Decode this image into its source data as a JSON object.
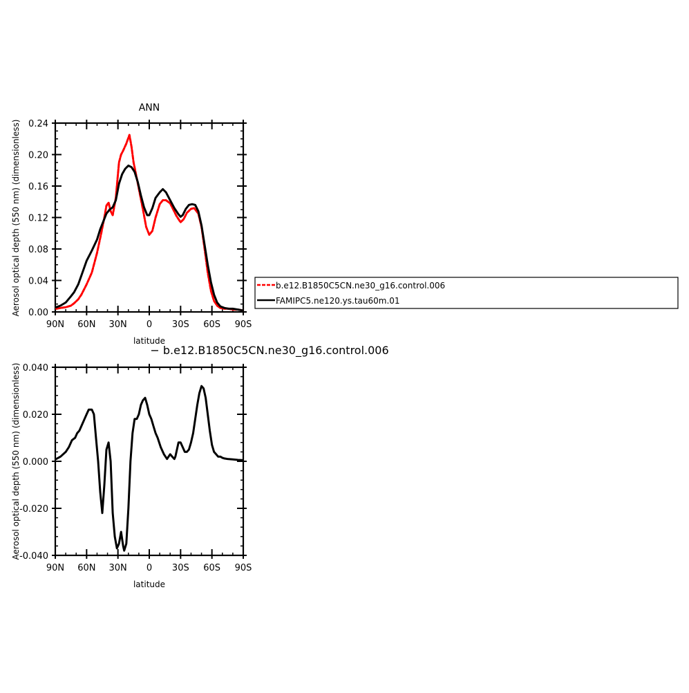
{
  "colors": {
    "red_series": "#ff0000",
    "black_series": "#000000"
  },
  "top_plot": {
    "title": "ANN",
    "xlabel": "latitude",
    "ylabel": "Aerosol optical depth (550 nm) (dimensionless)"
  },
  "bottom_plot": {
    "title": "− b.e12.B1850C5CN.ne30_g16.control.006",
    "xlabel": "latitude",
    "ylabel": "Aerosol optical depth (550 nm) (dimensionless)"
  },
  "legend": {
    "items": [
      {
        "label": "b.e12.B1850C5CN.ne30_g16.control.006",
        "color": "#ff0000",
        "style": "dashed"
      },
      {
        "label": "FAMIPC5.ne120.ys.tau60m.01",
        "color": "#000000",
        "style": "solid"
      }
    ]
  },
  "chart_data": [
    {
      "type": "line",
      "title": "ANN",
      "xlabel": "latitude",
      "ylabel": "Aerosol optical depth (550 nm) (dimensionless)",
      "xlim": [
        90,
        -90
      ],
      "ylim": [
        0,
        0.24
      ],
      "xticks": [
        90,
        60,
        30,
        0,
        -30,
        -60,
        -90
      ],
      "xtick_labels": [
        "90N",
        "60N",
        "30N",
        "0",
        "30S",
        "60S",
        "90S"
      ],
      "yticks": [
        0,
        0.04,
        0.08,
        0.12,
        0.16,
        0.2,
        0.24
      ],
      "ytick_labels": [
        "0.00",
        "0.04",
        "0.08",
        "0.12",
        "0.16",
        "0.20",
        "0.24"
      ],
      "legend_position": "right",
      "series": [
        {
          "name": "b.e12.B1850C5CN.ne30_g16.control.006",
          "color": "#ff0000",
          "style": "dashed",
          "x": [
            89,
            85,
            80,
            75,
            72,
            68,
            65,
            60,
            55,
            50,
            46,
            43,
            41,
            39,
            37,
            35,
            32,
            29,
            27,
            25,
            22,
            19,
            17,
            15,
            12,
            9,
            6,
            3,
            0,
            -3,
            -6,
            -10,
            -13,
            -16,
            -20,
            -23,
            -26,
            -30,
            -33,
            -36,
            -40,
            -43,
            -47,
            -50,
            -53,
            -56,
            -59,
            -62,
            -65,
            -68,
            -72,
            -76,
            -80,
            -85,
            -89
          ],
          "y": [
            0.004,
            0.005,
            0.006,
            0.008,
            0.011,
            0.016,
            0.022,
            0.035,
            0.05,
            0.075,
            0.1,
            0.12,
            0.135,
            0.139,
            0.128,
            0.123,
            0.145,
            0.19,
            0.2,
            0.205,
            0.214,
            0.225,
            0.21,
            0.19,
            0.17,
            0.15,
            0.13,
            0.108,
            0.098,
            0.103,
            0.12,
            0.137,
            0.142,
            0.142,
            0.138,
            0.13,
            0.122,
            0.114,
            0.118,
            0.126,
            0.131,
            0.132,
            0.125,
            0.108,
            0.08,
            0.05,
            0.027,
            0.014,
            0.008,
            0.005,
            0.004,
            0.004,
            0.003,
            0.003,
            0.002
          ]
        },
        {
          "name": "FAMIPC5.ne120.ys.tau60m.01",
          "color": "#000000",
          "style": "solid",
          "x": [
            89,
            85,
            80,
            75,
            72,
            68,
            64,
            60,
            55,
            50,
            47,
            44,
            41,
            38,
            35,
            32,
            29,
            26,
            23,
            20,
            17,
            14,
            11,
            8,
            5,
            2,
            0,
            -3,
            -6,
            -10,
            -13,
            -16,
            -20,
            -24,
            -28,
            -30,
            -32,
            -35,
            -38,
            -41,
            -44,
            -47,
            -50,
            -53,
            -56,
            -59,
            -62,
            -65,
            -68,
            -72,
            -76,
            -80,
            -85,
            -89
          ],
          "y": [
            0.006,
            0.008,
            0.012,
            0.02,
            0.025,
            0.035,
            0.05,
            0.065,
            0.078,
            0.092,
            0.105,
            0.115,
            0.125,
            0.13,
            0.133,
            0.142,
            0.163,
            0.175,
            0.182,
            0.186,
            0.184,
            0.178,
            0.165,
            0.148,
            0.133,
            0.123,
            0.123,
            0.132,
            0.145,
            0.152,
            0.156,
            0.152,
            0.142,
            0.132,
            0.124,
            0.121,
            0.123,
            0.131,
            0.136,
            0.137,
            0.136,
            0.128,
            0.11,
            0.085,
            0.06,
            0.038,
            0.022,
            0.012,
            0.007,
            0.005,
            0.004,
            0.004,
            0.003,
            0.002
          ]
        }
      ]
    },
    {
      "type": "line",
      "title": "− b.e12.B1850C5CN.ne30_g16.control.006",
      "xlabel": "latitude",
      "ylabel": "Aerosol optical depth (550 nm) (dimensionless)",
      "xlim": [
        90,
        -90
      ],
      "ylim": [
        -0.04,
        0.04
      ],
      "xticks": [
        90,
        60,
        30,
        0,
        -30,
        -60,
        -90
      ],
      "xtick_labels": [
        "90N",
        "60N",
        "30N",
        "0",
        "30S",
        "60S",
        "90S"
      ],
      "yticks": [
        -0.04,
        -0.02,
        0,
        0.02,
        0.04
      ],
      "ytick_labels": [
        "-0.040",
        "-0.020",
        "0.000",
        "0.020",
        "0.040"
      ],
      "series": [
        {
          "color": "#000000",
          "style": "solid",
          "x": [
            89,
            85,
            80,
            77,
            74,
            71,
            69,
            67,
            64,
            62,
            60,
            58,
            55,
            53,
            51,
            49,
            47,
            45,
            43,
            41,
            39,
            37,
            35,
            33,
            31,
            29,
            27,
            25,
            24,
            22,
            20,
            18,
            16,
            15,
            14,
            12,
            10,
            8,
            6,
            4,
            2,
            0,
            -2,
            -4,
            -6,
            -8,
            -11,
            -14,
            -17,
            -20,
            -22,
            -24,
            -25,
            -27,
            -28,
            -30,
            -32,
            -34,
            -36,
            -38,
            -40,
            -42,
            -44,
            -46,
            -48,
            -50,
            -52,
            -54,
            -56,
            -58,
            -60,
            -62,
            -64,
            -66,
            -68,
            -70,
            -72,
            -75,
            -80,
            -85,
            -89
          ],
          "y": [
            0.001,
            0.002,
            0.004,
            0.006,
            0.009,
            0.01,
            0.012,
            0.013,
            0.016,
            0.018,
            0.02,
            0.022,
            0.022,
            0.02,
            0.01,
            0.0,
            -0.013,
            -0.022,
            -0.01,
            0.005,
            0.008,
            0.0,
            -0.022,
            -0.032,
            -0.037,
            -0.035,
            -0.03,
            -0.036,
            -0.038,
            -0.035,
            -0.02,
            0.0,
            0.012,
            0.015,
            0.018,
            0.018,
            0.02,
            0.024,
            0.026,
            0.027,
            0.024,
            0.02,
            0.018,
            0.015,
            0.012,
            0.01,
            0.006,
            0.003,
            0.001,
            0.003,
            0.002,
            0.001,
            0.002,
            0.006,
            0.008,
            0.008,
            0.006,
            0.004,
            0.004,
            0.005,
            0.008,
            0.012,
            0.018,
            0.024,
            0.029,
            0.032,
            0.031,
            0.027,
            0.02,
            0.013,
            0.007,
            0.004,
            0.003,
            0.002,
            0.002,
            0.0015,
            0.0012,
            0.001,
            0.0008,
            0.0006,
            0.0005
          ]
        }
      ]
    }
  ]
}
